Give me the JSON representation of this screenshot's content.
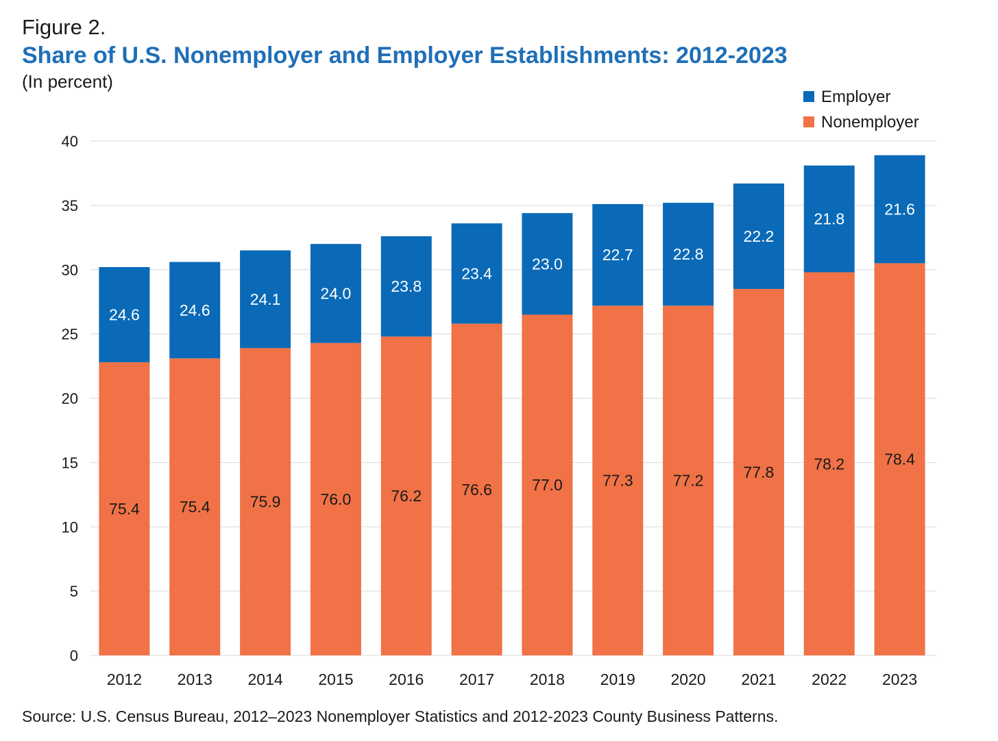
{
  "figure_label": "Figure 2.",
  "title": "Share of U.S. Nonemployer and Employer Establishments: 2012-2023",
  "subtitle": "(In percent)",
  "source": "Source: U.S. Census Bureau, 2012–2023 Nonemployer Statistics and 2012-2023 County Business Patterns.",
  "colors": {
    "employer": "#0a6ab7",
    "nonemployer": "#f07246",
    "grid": "#d9d9d9",
    "text": "#1a1a1a"
  },
  "legend": [
    {
      "name": "Employer",
      "color": "#0a6ab7"
    },
    {
      "name": "Nonemployer",
      "color": "#f07246"
    }
  ],
  "chart_data": {
    "type": "bar",
    "stacked": true,
    "categories": [
      "2012",
      "2013",
      "2014",
      "2015",
      "2016",
      "2017",
      "2018",
      "2019",
      "2020",
      "2021",
      "2022",
      "2023"
    ],
    "series": [
      {
        "name": "Nonemployer",
        "values": [
          22.8,
          23.1,
          23.9,
          24.3,
          24.8,
          25.8,
          26.5,
          27.2,
          27.2,
          28.5,
          29.8,
          30.5
        ],
        "labels": [
          "75.4",
          "75.4",
          "75.9",
          "76.0",
          "76.2",
          "76.6",
          "77.0",
          "77.3",
          "77.2",
          "77.8",
          "78.2",
          "78.4"
        ]
      },
      {
        "name": "Employer",
        "values": [
          7.4,
          7.5,
          7.6,
          7.7,
          7.8,
          7.8,
          7.9,
          7.9,
          8.0,
          8.2,
          8.3,
          8.4
        ],
        "labels": [
          "24.6",
          "24.6",
          "24.1",
          "24.0",
          "23.8",
          "23.4",
          "23.0",
          "22.7",
          "22.8",
          "22.2",
          "21.8",
          "21.6"
        ]
      }
    ],
    "ylim": [
      0,
      40
    ],
    "yticks": [
      0,
      5,
      10,
      15,
      20,
      25,
      30,
      35,
      40
    ],
    "grid": true,
    "legend_position": "top-right"
  }
}
